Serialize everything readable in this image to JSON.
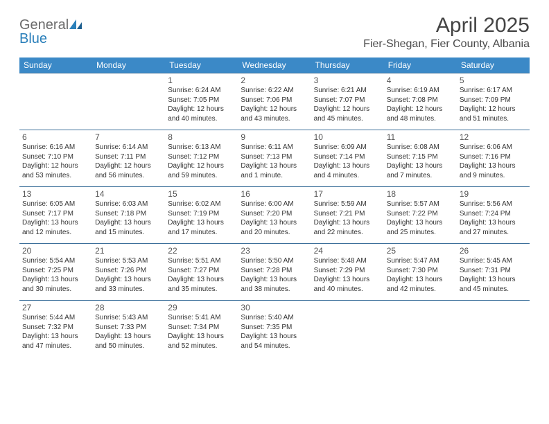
{
  "logo": {
    "line1": "General",
    "line2": "Blue"
  },
  "title": "April 2025",
  "location": "Fier-Shegan, Fier County, Albania",
  "colors": {
    "header_bg": "#3b89c7",
    "header_text": "#ffffff",
    "cell_border": "#3b6f9a",
    "logo_gray": "#6b6b6b",
    "logo_blue": "#2a7fba"
  },
  "day_headers": [
    "Sunday",
    "Monday",
    "Tuesday",
    "Wednesday",
    "Thursday",
    "Friday",
    "Saturday"
  ],
  "weeks": [
    [
      {
        "day": "",
        "lines": []
      },
      {
        "day": "",
        "lines": []
      },
      {
        "day": "1",
        "lines": [
          "Sunrise: 6:24 AM",
          "Sunset: 7:05 PM",
          "Daylight: 12 hours",
          "and 40 minutes."
        ]
      },
      {
        "day": "2",
        "lines": [
          "Sunrise: 6:22 AM",
          "Sunset: 7:06 PM",
          "Daylight: 12 hours",
          "and 43 minutes."
        ]
      },
      {
        "day": "3",
        "lines": [
          "Sunrise: 6:21 AM",
          "Sunset: 7:07 PM",
          "Daylight: 12 hours",
          "and 45 minutes."
        ]
      },
      {
        "day": "4",
        "lines": [
          "Sunrise: 6:19 AM",
          "Sunset: 7:08 PM",
          "Daylight: 12 hours",
          "and 48 minutes."
        ]
      },
      {
        "day": "5",
        "lines": [
          "Sunrise: 6:17 AM",
          "Sunset: 7:09 PM",
          "Daylight: 12 hours",
          "and 51 minutes."
        ]
      }
    ],
    [
      {
        "day": "6",
        "lines": [
          "Sunrise: 6:16 AM",
          "Sunset: 7:10 PM",
          "Daylight: 12 hours",
          "and 53 minutes."
        ]
      },
      {
        "day": "7",
        "lines": [
          "Sunrise: 6:14 AM",
          "Sunset: 7:11 PM",
          "Daylight: 12 hours",
          "and 56 minutes."
        ]
      },
      {
        "day": "8",
        "lines": [
          "Sunrise: 6:13 AM",
          "Sunset: 7:12 PM",
          "Daylight: 12 hours",
          "and 59 minutes."
        ]
      },
      {
        "day": "9",
        "lines": [
          "Sunrise: 6:11 AM",
          "Sunset: 7:13 PM",
          "Daylight: 13 hours",
          "and 1 minute."
        ]
      },
      {
        "day": "10",
        "lines": [
          "Sunrise: 6:09 AM",
          "Sunset: 7:14 PM",
          "Daylight: 13 hours",
          "and 4 minutes."
        ]
      },
      {
        "day": "11",
        "lines": [
          "Sunrise: 6:08 AM",
          "Sunset: 7:15 PM",
          "Daylight: 13 hours",
          "and 7 minutes."
        ]
      },
      {
        "day": "12",
        "lines": [
          "Sunrise: 6:06 AM",
          "Sunset: 7:16 PM",
          "Daylight: 13 hours",
          "and 9 minutes."
        ]
      }
    ],
    [
      {
        "day": "13",
        "lines": [
          "Sunrise: 6:05 AM",
          "Sunset: 7:17 PM",
          "Daylight: 13 hours",
          "and 12 minutes."
        ]
      },
      {
        "day": "14",
        "lines": [
          "Sunrise: 6:03 AM",
          "Sunset: 7:18 PM",
          "Daylight: 13 hours",
          "and 15 minutes."
        ]
      },
      {
        "day": "15",
        "lines": [
          "Sunrise: 6:02 AM",
          "Sunset: 7:19 PM",
          "Daylight: 13 hours",
          "and 17 minutes."
        ]
      },
      {
        "day": "16",
        "lines": [
          "Sunrise: 6:00 AM",
          "Sunset: 7:20 PM",
          "Daylight: 13 hours",
          "and 20 minutes."
        ]
      },
      {
        "day": "17",
        "lines": [
          "Sunrise: 5:59 AM",
          "Sunset: 7:21 PM",
          "Daylight: 13 hours",
          "and 22 minutes."
        ]
      },
      {
        "day": "18",
        "lines": [
          "Sunrise: 5:57 AM",
          "Sunset: 7:22 PM",
          "Daylight: 13 hours",
          "and 25 minutes."
        ]
      },
      {
        "day": "19",
        "lines": [
          "Sunrise: 5:56 AM",
          "Sunset: 7:24 PM",
          "Daylight: 13 hours",
          "and 27 minutes."
        ]
      }
    ],
    [
      {
        "day": "20",
        "lines": [
          "Sunrise: 5:54 AM",
          "Sunset: 7:25 PM",
          "Daylight: 13 hours",
          "and 30 minutes."
        ]
      },
      {
        "day": "21",
        "lines": [
          "Sunrise: 5:53 AM",
          "Sunset: 7:26 PM",
          "Daylight: 13 hours",
          "and 33 minutes."
        ]
      },
      {
        "day": "22",
        "lines": [
          "Sunrise: 5:51 AM",
          "Sunset: 7:27 PM",
          "Daylight: 13 hours",
          "and 35 minutes."
        ]
      },
      {
        "day": "23",
        "lines": [
          "Sunrise: 5:50 AM",
          "Sunset: 7:28 PM",
          "Daylight: 13 hours",
          "and 38 minutes."
        ]
      },
      {
        "day": "24",
        "lines": [
          "Sunrise: 5:48 AM",
          "Sunset: 7:29 PM",
          "Daylight: 13 hours",
          "and 40 minutes."
        ]
      },
      {
        "day": "25",
        "lines": [
          "Sunrise: 5:47 AM",
          "Sunset: 7:30 PM",
          "Daylight: 13 hours",
          "and 42 minutes."
        ]
      },
      {
        "day": "26",
        "lines": [
          "Sunrise: 5:45 AM",
          "Sunset: 7:31 PM",
          "Daylight: 13 hours",
          "and 45 minutes."
        ]
      }
    ],
    [
      {
        "day": "27",
        "lines": [
          "Sunrise: 5:44 AM",
          "Sunset: 7:32 PM",
          "Daylight: 13 hours",
          "and 47 minutes."
        ]
      },
      {
        "day": "28",
        "lines": [
          "Sunrise: 5:43 AM",
          "Sunset: 7:33 PM",
          "Daylight: 13 hours",
          "and 50 minutes."
        ]
      },
      {
        "day": "29",
        "lines": [
          "Sunrise: 5:41 AM",
          "Sunset: 7:34 PM",
          "Daylight: 13 hours",
          "and 52 minutes."
        ]
      },
      {
        "day": "30",
        "lines": [
          "Sunrise: 5:40 AM",
          "Sunset: 7:35 PM",
          "Daylight: 13 hours",
          "and 54 minutes."
        ]
      },
      {
        "day": "",
        "lines": []
      },
      {
        "day": "",
        "lines": []
      },
      {
        "day": "",
        "lines": []
      }
    ]
  ]
}
